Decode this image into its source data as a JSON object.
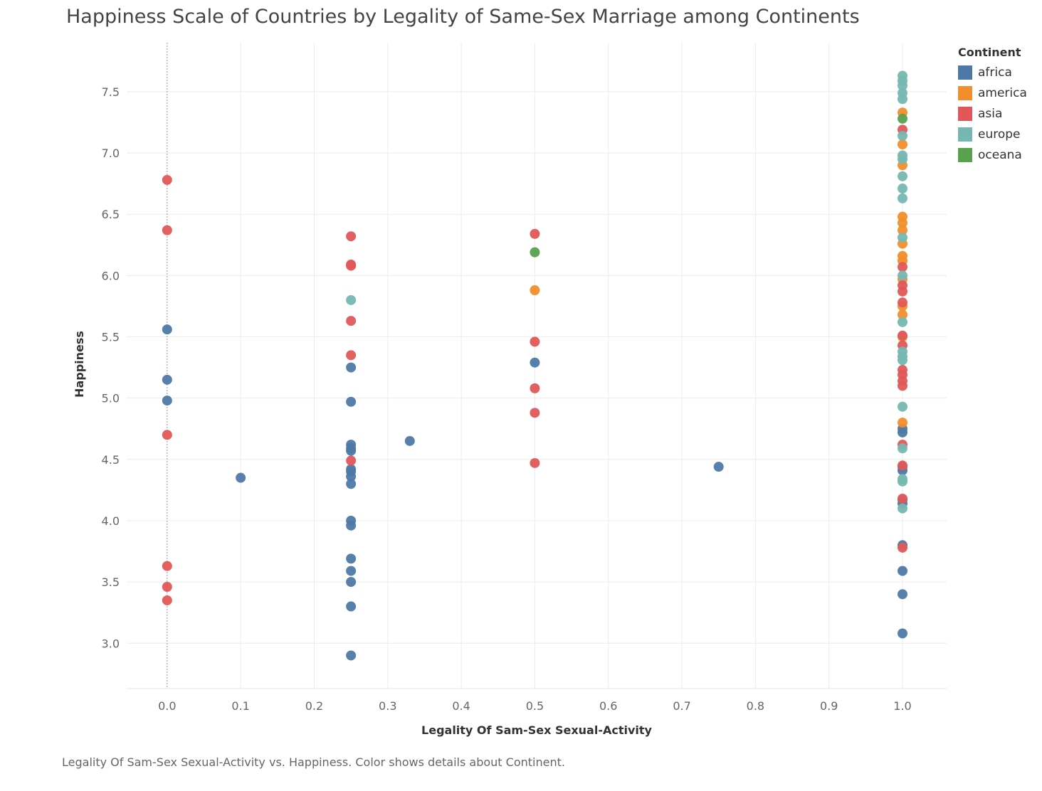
{
  "chart_data": {
    "type": "scatter",
    "title": "Happiness Scale of Countries by Legality of Same-Sex Marriage among Continents",
    "xlabel": "Legality Of Sam-Sex Sexual-Activity",
    "ylabel": "Happiness",
    "caption": "Legality Of Sam-Sex Sexual-Activity vs. Happiness.  Color shows details about Continent.",
    "xlim": [
      -0.055,
      1.06
    ],
    "ylim": [
      2.63,
      7.9
    ],
    "x_ticks": [
      "0.0",
      "0.1",
      "0.2",
      "0.3",
      "0.4",
      "0.5",
      "0.6",
      "0.7",
      "0.8",
      "0.9",
      "1.0"
    ],
    "y_ticks": [
      "3.0",
      "3.5",
      "4.0",
      "4.5",
      "5.0",
      "5.5",
      "6.0",
      "6.5",
      "7.0",
      "7.5"
    ],
    "grid": true,
    "legend": {
      "title": "Continent",
      "position": "top-right",
      "entries": [
        {
          "name": "africa",
          "color": "#4e79a7"
        },
        {
          "name": "america",
          "color": "#f28e2b"
        },
        {
          "name": "asia",
          "color": "#e15759"
        },
        {
          "name": "europe",
          "color": "#76b7b2"
        },
        {
          "name": "oceana",
          "color": "#59a14f"
        }
      ]
    },
    "series": [
      {
        "name": "africa",
        "color": "#4e79a7",
        "points": [
          [
            0,
            5.56
          ],
          [
            0,
            5.15
          ],
          [
            0,
            4.98
          ],
          [
            0.1,
            4.35
          ],
          [
            0.25,
            5.25
          ],
          [
            0.25,
            4.97
          ],
          [
            0.25,
            4.62
          ],
          [
            0.25,
            4.59
          ],
          [
            0.25,
            4.57
          ],
          [
            0.25,
            4.42
          ],
          [
            0.25,
            4.4
          ],
          [
            0.25,
            4.36
          ],
          [
            0.25,
            4.3
          ],
          [
            0.25,
            4.0
          ],
          [
            0.25,
            3.96
          ],
          [
            0.25,
            3.69
          ],
          [
            0.25,
            3.59
          ],
          [
            0.25,
            3.5
          ],
          [
            0.25,
            3.3
          ],
          [
            0.25,
            2.9
          ],
          [
            0.33,
            4.65
          ],
          [
            0.5,
            5.29
          ],
          [
            0.75,
            4.44
          ],
          [
            1,
            4.75
          ],
          [
            1,
            4.72
          ],
          [
            1,
            4.44
          ],
          [
            1,
            4.41
          ],
          [
            1,
            4.17
          ],
          [
            1,
            4.14
          ],
          [
            1,
            3.8
          ],
          [
            1,
            3.59
          ],
          [
            1,
            3.4
          ],
          [
            1,
            3.08
          ]
        ]
      },
      {
        "name": "america",
        "color": "#f28e2b",
        "points": [
          [
            0.5,
            5.88
          ],
          [
            1,
            7.33
          ],
          [
            1,
            7.07
          ],
          [
            1,
            6.9
          ],
          [
            1,
            6.48
          ],
          [
            1,
            6.43
          ],
          [
            1,
            6.37
          ],
          [
            1,
            6.26
          ],
          [
            1,
            6.16
          ],
          [
            1,
            6.12
          ],
          [
            1,
            5.97
          ],
          [
            1,
            5.75
          ],
          [
            1,
            5.68
          ],
          [
            1,
            5.5
          ],
          [
            1,
            4.8
          ]
        ]
      },
      {
        "name": "asia",
        "color": "#e15759",
        "points": [
          [
            0,
            6.78
          ],
          [
            0,
            6.37
          ],
          [
            0,
            4.7
          ],
          [
            0,
            3.63
          ],
          [
            0,
            3.46
          ],
          [
            0,
            3.35
          ],
          [
            0.25,
            6.32
          ],
          [
            0.25,
            6.09
          ],
          [
            0.25,
            6.08
          ],
          [
            0.25,
            5.63
          ],
          [
            0.25,
            5.35
          ],
          [
            0.25,
            4.49
          ],
          [
            0.5,
            6.34
          ],
          [
            0.5,
            5.46
          ],
          [
            0.5,
            5.08
          ],
          [
            0.5,
            4.88
          ],
          [
            0.5,
            4.47
          ],
          [
            1,
            7.19
          ],
          [
            1,
            6.07
          ],
          [
            1,
            5.92
          ],
          [
            1,
            5.87
          ],
          [
            1,
            5.78
          ],
          [
            1,
            5.51
          ],
          [
            1,
            5.43
          ],
          [
            1,
            5.23
          ],
          [
            1,
            5.19
          ],
          [
            1,
            5.14
          ],
          [
            1,
            5.1
          ],
          [
            1,
            4.62
          ],
          [
            1,
            4.45
          ],
          [
            1,
            4.18
          ],
          [
            1,
            3.78
          ]
        ]
      },
      {
        "name": "europe",
        "color": "#76b7b2",
        "points": [
          [
            0.25,
            5.8
          ],
          [
            1,
            7.63
          ],
          [
            1,
            7.59
          ],
          [
            1,
            7.55
          ],
          [
            1,
            7.49
          ],
          [
            1,
            7.44
          ],
          [
            1,
            7.14
          ],
          [
            1,
            6.98
          ],
          [
            1,
            6.95
          ],
          [
            1,
            6.81
          ],
          [
            1,
            6.71
          ],
          [
            1,
            6.63
          ],
          [
            1,
            6.31
          ],
          [
            1,
            6.0
          ],
          [
            1,
            5.62
          ],
          [
            1,
            5.38
          ],
          [
            1,
            5.34
          ],
          [
            1,
            5.31
          ],
          [
            1,
            4.93
          ],
          [
            1,
            4.59
          ],
          [
            1,
            4.34
          ],
          [
            1,
            4.32
          ],
          [
            1,
            4.1
          ]
        ]
      },
      {
        "name": "oceana",
        "color": "#59a14f",
        "points": [
          [
            0.5,
            6.19
          ],
          [
            1,
            7.28
          ]
        ]
      }
    ]
  }
}
